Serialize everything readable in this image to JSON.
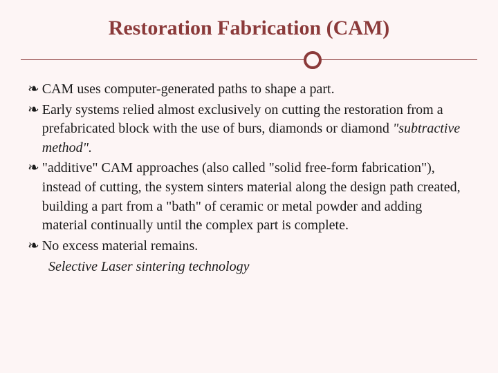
{
  "slide": {
    "title": "Restoration Fabrication (CAM)",
    "bullets": [
      {
        "marker": "❧",
        "text": "CAM uses computer-generated paths to shape a part."
      },
      {
        "marker": "❧",
        "text": "Early systems relied almost exclusively on cutting the restoration from a prefabricated block with the use of burs, diamonds or diamond ",
        "italic_suffix": "\"subtractive method\"."
      },
      {
        "marker": "❧",
        "text": "\"additive\" CAM approaches (also called \"solid free-form fabrication\"), instead of cutting, the system sinters material along the design path created, building a part from a \"bath\" of ceramic or metal powder and adding material continually until the complex part is complete."
      },
      {
        "marker": "❧",
        "text": "No excess material remains."
      }
    ],
    "sub_line": "Selective Laser sintering technology"
  },
  "style": {
    "title_color": "#8b3a3a",
    "title_fontsize": 30,
    "body_fontsize": 20,
    "body_color": "#1a1a1a",
    "background_color": "#fdf5f5",
    "divider_color": "#8b3a3a",
    "circle_border_width": 4,
    "circle_diameter": 26,
    "font_family": "Georgia, serif"
  }
}
